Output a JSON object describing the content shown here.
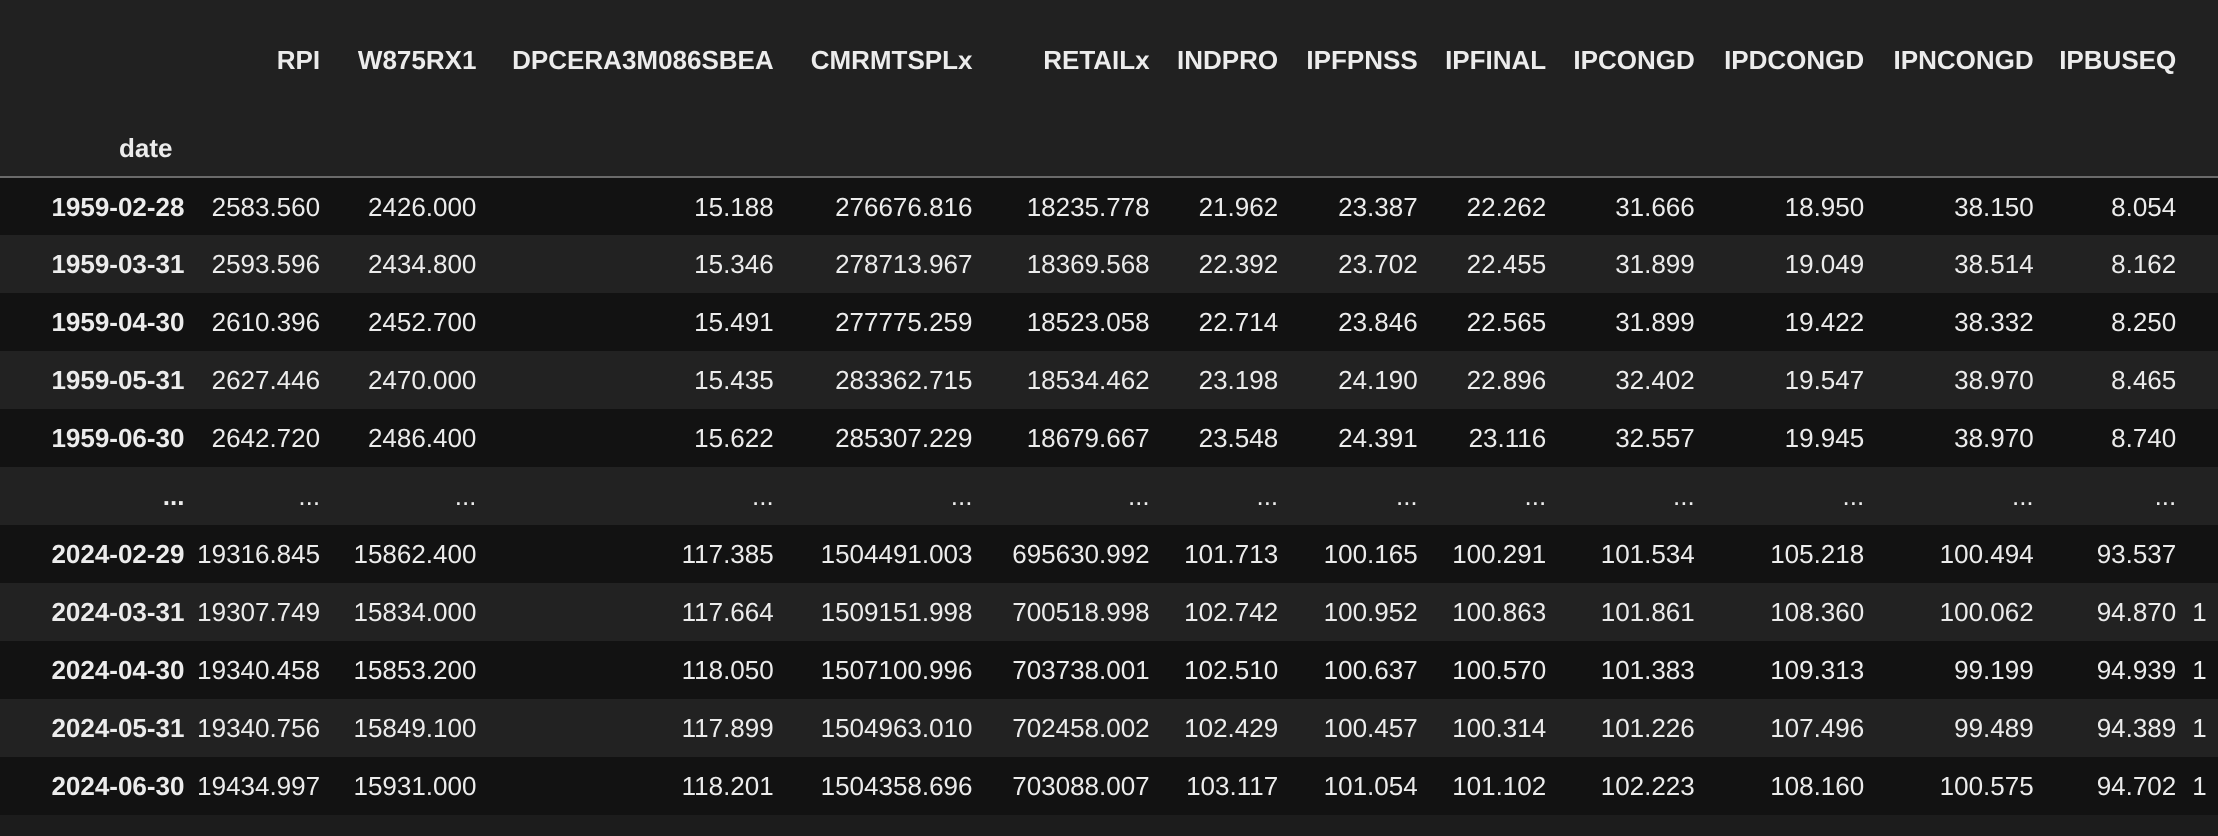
{
  "table": {
    "index_name": "date",
    "columns": [
      "RPI",
      "W875RX1",
      "DPCERA3M086SBEA",
      "CMRMTSPLx",
      "RETAILx",
      "INDPRO",
      "IPFPNSS",
      "IPFINAL",
      "IPCONGD",
      "IPDCONGD",
      "IPNCONGD",
      "IPBUSEQ"
    ],
    "rows": [
      {
        "index": "1959-02-28",
        "cells": [
          "2583.560",
          "2426.000",
          "15.188",
          "276676.816",
          "18235.778",
          "21.962",
          "23.387",
          "22.262",
          "31.666",
          "18.950",
          "38.150",
          "8.054"
        ],
        "overflow": ""
      },
      {
        "index": "1959-03-31",
        "cells": [
          "2593.596",
          "2434.800",
          "15.346",
          "278713.967",
          "18369.568",
          "22.392",
          "23.702",
          "22.455",
          "31.899",
          "19.049",
          "38.514",
          "8.162"
        ],
        "overflow": ""
      },
      {
        "index": "1959-04-30",
        "cells": [
          "2610.396",
          "2452.700",
          "15.491",
          "277775.259",
          "18523.058",
          "22.714",
          "23.846",
          "22.565",
          "31.899",
          "19.422",
          "38.332",
          "8.250"
        ],
        "overflow": ""
      },
      {
        "index": "1959-05-31",
        "cells": [
          "2627.446",
          "2470.000",
          "15.435",
          "283362.715",
          "18534.462",
          "23.198",
          "24.190",
          "22.896",
          "32.402",
          "19.547",
          "38.970",
          "8.465"
        ],
        "overflow": ""
      },
      {
        "index": "1959-06-30",
        "cells": [
          "2642.720",
          "2486.400",
          "15.622",
          "285307.229",
          "18679.667",
          "23.548",
          "24.391",
          "23.116",
          "32.557",
          "19.945",
          "38.970",
          "8.740"
        ],
        "overflow": ""
      },
      {
        "index": "...",
        "cells": [
          "...",
          "...",
          "...",
          "...",
          "...",
          "...",
          "...",
          "...",
          "...",
          "...",
          "...",
          "..."
        ],
        "overflow": ""
      },
      {
        "index": "2024-02-29",
        "cells": [
          "19316.845",
          "15862.400",
          "117.385",
          "1504491.003",
          "695630.992",
          "101.713",
          "100.165",
          "100.291",
          "101.534",
          "105.218",
          "100.494",
          "93.537"
        ],
        "overflow": ""
      },
      {
        "index": "2024-03-31",
        "cells": [
          "19307.749",
          "15834.000",
          "117.664",
          "1509151.998",
          "700518.998",
          "102.742",
          "100.952",
          "100.863",
          "101.861",
          "108.360",
          "100.062",
          "94.870"
        ],
        "overflow": "1"
      },
      {
        "index": "2024-04-30",
        "cells": [
          "19340.458",
          "15853.200",
          "118.050",
          "1507100.996",
          "703738.001",
          "102.510",
          "100.637",
          "100.570",
          "101.383",
          "109.313",
          "99.199",
          "94.939"
        ],
        "overflow": "1"
      },
      {
        "index": "2024-05-31",
        "cells": [
          "19340.756",
          "15849.100",
          "117.899",
          "1504963.010",
          "702458.002",
          "102.429",
          "100.457",
          "100.314",
          "101.226",
          "107.496",
          "99.489",
          "94.389"
        ],
        "overflow": "1"
      },
      {
        "index": "2024-06-30",
        "cells": [
          "19434.997",
          "15931.000",
          "118.201",
          "1504358.696",
          "703088.007",
          "103.117",
          "101.054",
          "101.102",
          "102.223",
          "108.160",
          "100.575",
          "94.702"
        ],
        "overflow": "1"
      }
    ]
  }
}
